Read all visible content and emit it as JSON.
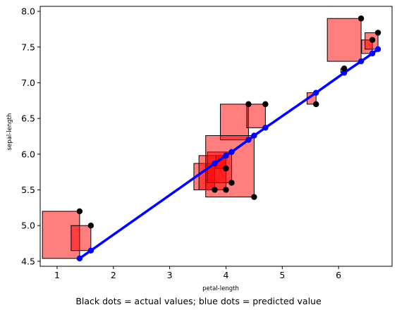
{
  "caption": "Black dots = actual values; blue dots = predicted value",
  "chart_data": {
    "type": "scatter",
    "xlabel": "petal-length",
    "ylabel": "sepal-length",
    "xlim": [
      0.7,
      6.95
    ],
    "ylim": [
      4.43,
      8.07
    ],
    "xticks": [
      1,
      2,
      3,
      4,
      5,
      6
    ],
    "yticks": [
      4.5,
      5.0,
      5.5,
      6.0,
      6.5,
      7.0,
      7.5,
      8.0
    ],
    "ytick_labels": [
      "4.5",
      "5.0",
      "5.5",
      "6.0",
      "6.5",
      "7.0",
      "7.5",
      "8.0"
    ],
    "colors": {
      "actual": "#000000",
      "predicted": "#0000ff",
      "residual_fill": "#ff0000",
      "residual_edge": "#000000"
    },
    "residual_fill_opacity": 0.5,
    "grid": false,
    "series": [
      {
        "name": "actual",
        "marker": "o",
        "x": [
          1.4,
          1.6,
          3.8,
          4.0,
          4.0,
          4.1,
          4.4,
          4.5,
          4.7,
          5.6,
          6.1,
          6.4,
          6.6,
          6.7
        ],
        "y": [
          5.2,
          5.0,
          5.5,
          5.5,
          5.8,
          5.6,
          6.7,
          5.4,
          6.7,
          6.7,
          7.2,
          7.9,
          7.6,
          7.7
        ]
      },
      {
        "name": "predicted",
        "marker": "o-",
        "x": [
          1.4,
          1.6,
          3.8,
          4.0,
          4.0,
          4.1,
          4.4,
          4.5,
          4.7,
          5.6,
          6.1,
          6.4,
          6.6,
          6.7
        ],
        "y": [
          4.54,
          4.65,
          5.87,
          5.98,
          5.98,
          6.03,
          6.2,
          6.26,
          6.37,
          6.86,
          7.14,
          7.3,
          7.41,
          7.47
        ]
      }
    ]
  }
}
